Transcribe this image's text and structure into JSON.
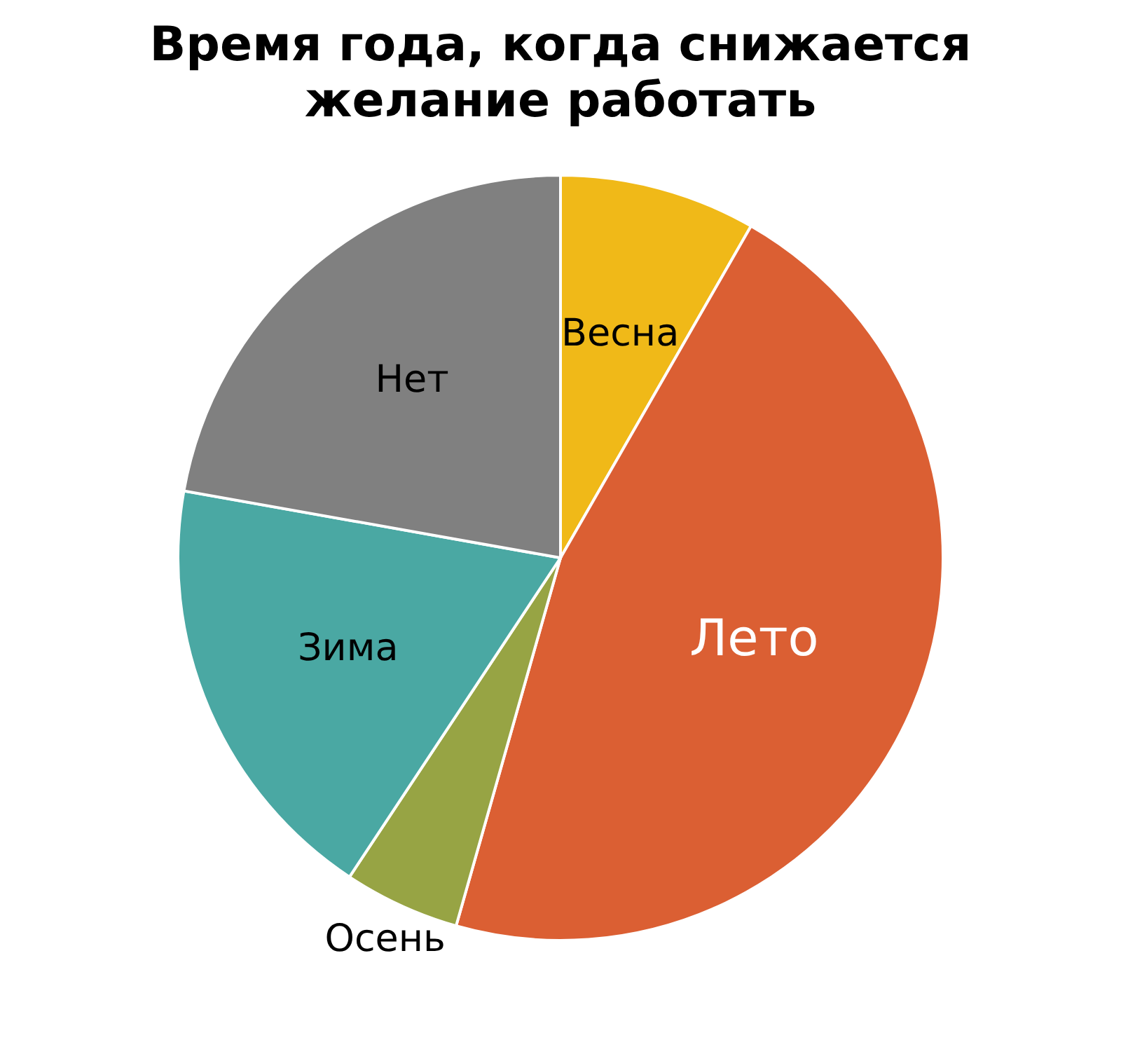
{
  "chart_data": {
    "type": "pie",
    "title": "Время года, когда снижается желание работать",
    "categories": [
      "Весна",
      "Лето",
      "Осень",
      "Зима",
      "Нет"
    ],
    "values": [
      8.3,
      46.1,
      4.9,
      18.5,
      22.2
    ],
    "colors": [
      "#f0b918",
      "#db5f33",
      "#97a444",
      "#4aa8a3",
      "#808080"
    ]
  }
}
